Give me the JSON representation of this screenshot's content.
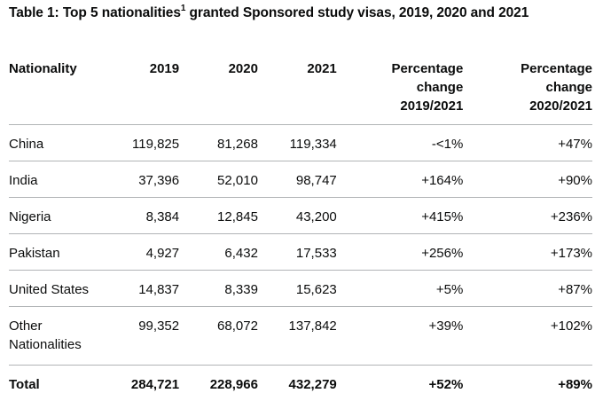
{
  "caption": {
    "prefix": "Table 1: Top 5 nationalities",
    "footnote": "1",
    "suffix": " granted Sponsored study visas, 2019, 2020 and 2021"
  },
  "headers": {
    "nationality": "Nationality",
    "y2019": "2019",
    "y2020": "2020",
    "y2021": "2021",
    "pc1_line1": "Percentage",
    "pc1_line2": "change",
    "pc1_line3": "2019/2021",
    "pc2_line1": "Percentage",
    "pc2_line2": "change",
    "pc2_line3": "2020/2021"
  },
  "rows": [
    {
      "nationality": "China",
      "y2019": "119,825",
      "y2020": "81,268",
      "y2021": "119,334",
      "pc1": "-<1%",
      "pc2": "+47%"
    },
    {
      "nationality": "India",
      "y2019": "37,396",
      "y2020": "52,010",
      "y2021": "98,747",
      "pc1": "+164%",
      "pc2": "+90%"
    },
    {
      "nationality": "Nigeria",
      "y2019": "8,384",
      "y2020": "12,845",
      "y2021": "43,200",
      "pc1": "+415%",
      "pc2": "+236%"
    },
    {
      "nationality": "Pakistan",
      "y2019": "4,927",
      "y2020": "6,432",
      "y2021": "17,533",
      "pc1": "+256%",
      "pc2": "+173%"
    },
    {
      "nationality": "United States",
      "y2019": "14,837",
      "y2020": "8,339",
      "y2021": "15,623",
      "pc1": "+5%",
      "pc2": "+87%"
    },
    {
      "nationality_line1": "Other",
      "nationality_line2": "Nationalities",
      "y2019": "99,352",
      "y2020": "68,072",
      "y2021": "137,842",
      "pc1": "+39%",
      "pc2": "+102%"
    }
  ],
  "total": {
    "label": "Total",
    "y2019": "284,721",
    "y2020": "228,966",
    "y2021": "432,279",
    "pc1": "+52%",
    "pc2": "+89%"
  }
}
